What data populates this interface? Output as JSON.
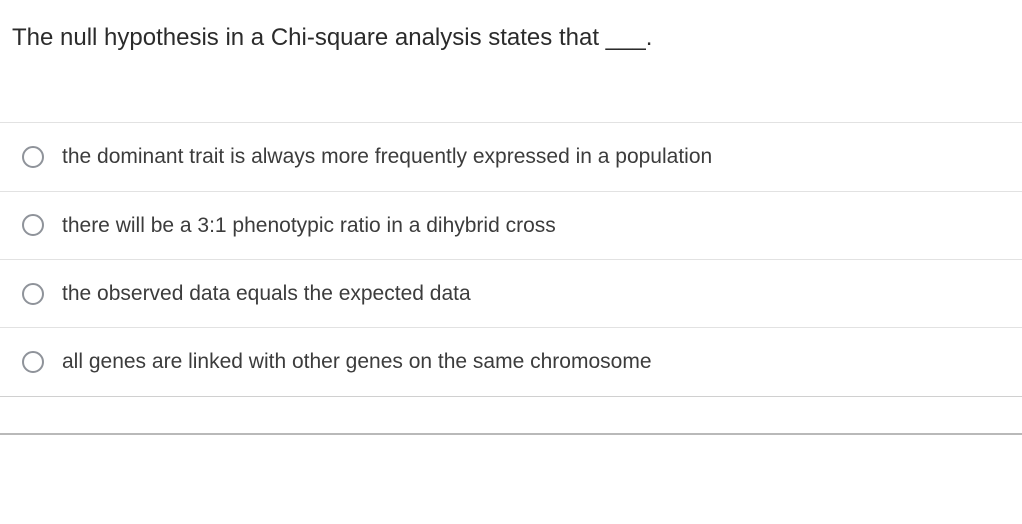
{
  "question": {
    "text": "The null hypothesis in a Chi-square analysis states that ___.",
    "text_color": "#2b2b2b",
    "fontsize": 24
  },
  "options": [
    {
      "label": "the dominant trait is always more frequently expressed in a population",
      "selected": false
    },
    {
      "label": "there will be a 3:1 phenotypic ratio in a dihybrid cross",
      "selected": false
    },
    {
      "label": "the observed data equals the expected data",
      "selected": false
    },
    {
      "label": "all genes are linked with other genes on the same chromosome",
      "selected": false
    }
  ],
  "style": {
    "radio_border_color": "#8f939a",
    "divider_color": "#e2e2e2",
    "bottom_rule_color": "#b9b9b9",
    "option_text_color": "#3c3c3c",
    "option_fontsize": 21,
    "background_color": "#ffffff"
  }
}
